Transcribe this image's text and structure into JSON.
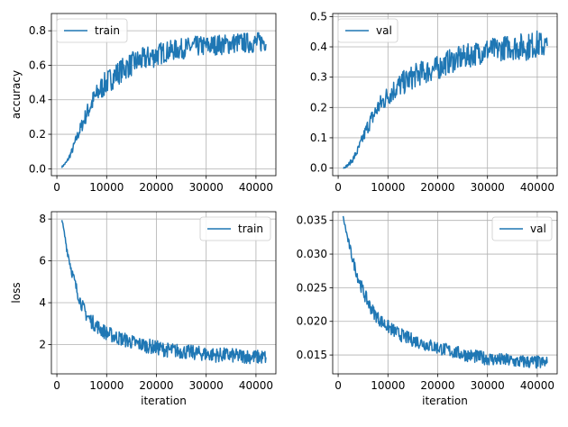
{
  "colors": {
    "series": "#1f77b4",
    "grid": "#b0b0b0",
    "axis": "#000000",
    "background": "#ffffff"
  },
  "chart_data": [
    {
      "id": "train-accuracy",
      "type": "line",
      "title": "",
      "xlabel": "",
      "ylabel": "accuracy",
      "xlim": [
        -1100,
        44000
      ],
      "ylim": [
        -0.04,
        0.9
      ],
      "xticks": [
        0,
        10000,
        20000,
        30000,
        40000
      ],
      "xtick_labels": [
        "0",
        "10000",
        "20000",
        "30000",
        "40000"
      ],
      "yticks": [
        0.0,
        0.2,
        0.4,
        0.6,
        0.8
      ],
      "ytick_labels": [
        "0.0",
        "0.2",
        "0.4",
        "0.6",
        "0.8"
      ],
      "grid": true,
      "legend": {
        "position": "upper-left",
        "entries": [
          "train"
        ]
      },
      "series": [
        {
          "name": "train",
          "x": [
            1000,
            2000,
            3000,
            4000,
            5000,
            6000,
            7000,
            8000,
            9000,
            10000,
            12000,
            14000,
            16000,
            18000,
            20000,
            22000,
            24000,
            26000,
            28000,
            30000,
            32000,
            34000,
            36000,
            38000,
            40000,
            42000
          ],
          "y": [
            0.01,
            0.04,
            0.1,
            0.18,
            0.25,
            0.32,
            0.38,
            0.43,
            0.47,
            0.5,
            0.55,
            0.59,
            0.62,
            0.64,
            0.66,
            0.68,
            0.69,
            0.7,
            0.71,
            0.71,
            0.72,
            0.72,
            0.73,
            0.73,
            0.73,
            0.74
          ],
          "noise_amplitude": [
            0.005,
            0.01,
            0.02,
            0.03,
            0.04,
            0.05,
            0.06,
            0.06,
            0.07,
            0.07,
            0.07,
            0.07,
            0.07,
            0.07,
            0.07,
            0.06,
            0.06,
            0.06,
            0.06,
            0.06,
            0.06,
            0.06,
            0.06,
            0.06,
            0.06,
            0.06
          ]
        }
      ]
    },
    {
      "id": "val-accuracy",
      "type": "line",
      "title": "",
      "xlabel": "",
      "ylabel": "",
      "xlim": [
        -1100,
        44000
      ],
      "ylim": [
        -0.025,
        0.51
      ],
      "xticks": [
        0,
        10000,
        20000,
        30000,
        40000
      ],
      "xtick_labels": [
        "0",
        "10000",
        "20000",
        "30000",
        "40000"
      ],
      "yticks": [
        0.0,
        0.1,
        0.2,
        0.3,
        0.4,
        0.5
      ],
      "ytick_labels": [
        "0.0",
        "0.1",
        "0.2",
        "0.3",
        "0.4",
        "0.5"
      ],
      "grid": true,
      "legend": {
        "position": "upper-left",
        "entries": [
          "val"
        ]
      },
      "series": [
        {
          "name": "val",
          "x": [
            1000,
            2000,
            3000,
            4000,
            5000,
            6000,
            7000,
            8000,
            9000,
            10000,
            12000,
            14000,
            16000,
            18000,
            20000,
            22000,
            24000,
            26000,
            28000,
            30000,
            32000,
            34000,
            36000,
            38000,
            40000,
            42000
          ],
          "y": [
            0.0,
            0.01,
            0.03,
            0.06,
            0.1,
            0.14,
            0.17,
            0.2,
            0.22,
            0.24,
            0.27,
            0.29,
            0.31,
            0.32,
            0.33,
            0.35,
            0.36,
            0.37,
            0.38,
            0.39,
            0.39,
            0.4,
            0.4,
            0.4,
            0.41,
            0.4
          ],
          "noise_amplitude": [
            0.002,
            0.005,
            0.01,
            0.015,
            0.02,
            0.025,
            0.03,
            0.03,
            0.035,
            0.035,
            0.04,
            0.04,
            0.04,
            0.04,
            0.04,
            0.04,
            0.04,
            0.04,
            0.04,
            0.04,
            0.04,
            0.04,
            0.045,
            0.045,
            0.045,
            0.04
          ]
        }
      ]
    },
    {
      "id": "train-loss",
      "type": "line",
      "title": "",
      "xlabel": "iteration",
      "ylabel": "loss",
      "xlim": [
        -1100,
        44000
      ],
      "ylim": [
        0.6,
        8.35
      ],
      "xticks": [
        0,
        10000,
        20000,
        30000,
        40000
      ],
      "xtick_labels": [
        "0",
        "10000",
        "20000",
        "30000",
        "40000"
      ],
      "yticks": [
        2,
        4,
        6,
        8
      ],
      "ytick_labels": [
        "2",
        "4",
        "6",
        "8"
      ],
      "grid": true,
      "legend": {
        "position": "upper-right",
        "entries": [
          "train"
        ]
      },
      "series": [
        {
          "name": "train",
          "x": [
            1000,
            2000,
            3000,
            4000,
            5000,
            6000,
            7000,
            8000,
            9000,
            10000,
            12000,
            14000,
            16000,
            18000,
            20000,
            22000,
            24000,
            26000,
            28000,
            30000,
            32000,
            34000,
            36000,
            38000,
            40000,
            42000
          ],
          "y": [
            8.0,
            6.6,
            5.5,
            4.6,
            3.9,
            3.4,
            3.1,
            2.9,
            2.7,
            2.55,
            2.35,
            2.2,
            2.05,
            1.95,
            1.85,
            1.75,
            1.7,
            1.65,
            1.6,
            1.55,
            1.5,
            1.5,
            1.45,
            1.45,
            1.4,
            1.4
          ],
          "noise_amplitude": [
            0.05,
            0.2,
            0.25,
            0.3,
            0.3,
            0.35,
            0.35,
            0.35,
            0.35,
            0.35,
            0.35,
            0.35,
            0.35,
            0.35,
            0.35,
            0.35,
            0.35,
            0.35,
            0.35,
            0.35,
            0.35,
            0.35,
            0.35,
            0.35,
            0.35,
            0.35
          ]
        }
      ]
    },
    {
      "id": "val-loss",
      "type": "line",
      "title": "",
      "xlabel": "iteration",
      "ylabel": "",
      "xlim": [
        -1100,
        44000
      ],
      "ylim": [
        0.0122,
        0.0363
      ],
      "xticks": [
        0,
        10000,
        20000,
        30000,
        40000
      ],
      "xtick_labels": [
        "0",
        "10000",
        "20000",
        "30000",
        "40000"
      ],
      "yticks": [
        0.015,
        0.02,
        0.025,
        0.03,
        0.035
      ],
      "ytick_labels": [
        "0.015",
        "0.020",
        "0.025",
        "0.030",
        "0.035"
      ],
      "grid": true,
      "legend": {
        "position": "upper-right",
        "entries": [
          "val"
        ]
      },
      "series": [
        {
          "name": "val",
          "x": [
            1000,
            2000,
            3000,
            4000,
            5000,
            6000,
            7000,
            8000,
            9000,
            10000,
            12000,
            14000,
            16000,
            18000,
            20000,
            22000,
            24000,
            26000,
            28000,
            30000,
            32000,
            34000,
            36000,
            38000,
            40000,
            42000
          ],
          "y": [
            0.0355,
            0.032,
            0.029,
            0.0265,
            0.0245,
            0.0228,
            0.0215,
            0.0205,
            0.0198,
            0.0192,
            0.0182,
            0.0175,
            0.017,
            0.0165,
            0.0161,
            0.0157,
            0.0153,
            0.015,
            0.0147,
            0.0145,
            0.0143,
            0.0142,
            0.014,
            0.014,
            0.0139,
            0.0138
          ],
          "noise_amplitude": [
            0.0002,
            0.0006,
            0.0008,
            0.0009,
            0.001,
            0.001,
            0.001,
            0.001,
            0.001,
            0.001,
            0.001,
            0.001,
            0.001,
            0.001,
            0.001,
            0.001,
            0.001,
            0.001,
            0.001,
            0.001,
            0.001,
            0.001,
            0.001,
            0.001,
            0.001,
            0.001
          ]
        }
      ]
    }
  ]
}
